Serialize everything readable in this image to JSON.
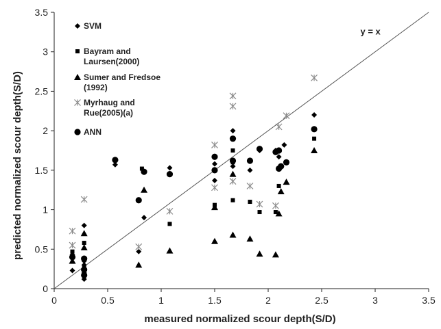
{
  "chart_data": {
    "type": "scatter",
    "xlabel": "measured normalized scour depth(S/D)",
    "ylabel": "predicted normalized scour depth(S/D)",
    "xlim": [
      0,
      3.5
    ],
    "ylim": [
      0,
      3.5
    ],
    "xticks": [
      "0",
      "0.5",
      "1",
      "1.5",
      "2",
      "2.5",
      "3",
      "3.5"
    ],
    "yticks": [
      "0",
      "0.5",
      "1",
      "1.5",
      "2",
      "2.5",
      "3",
      "3.5"
    ],
    "grid": false,
    "legend_position": "top-left inside plot",
    "reference_line": {
      "label": "y = x",
      "from": [
        0,
        0
      ],
      "to": [
        3.5,
        3.5
      ]
    },
    "series": [
      {
        "name": "SVM",
        "marker": "diamond",
        "color": "#000000",
        "legend_lines": [
          "SVM"
        ],
        "points": [
          [
            0.17,
            0.23
          ],
          [
            0.17,
            0.43
          ],
          [
            0.28,
            0.12
          ],
          [
            0.28,
            0.2
          ],
          [
            0.28,
            0.3
          ],
          [
            0.28,
            0.35
          ],
          [
            0.28,
            0.8
          ],
          [
            0.57,
            1.57
          ],
          [
            0.79,
            0.47
          ],
          [
            0.84,
            0.9
          ],
          [
            1.08,
            1.53
          ],
          [
            1.5,
            1.37
          ],
          [
            1.5,
            1.58
          ],
          [
            1.67,
            1.55
          ],
          [
            1.67,
            2.0
          ],
          [
            1.83,
            1.5
          ],
          [
            1.92,
            1.75
          ],
          [
            2.07,
            1.75
          ],
          [
            2.1,
            1.67
          ],
          [
            2.15,
            1.82
          ],
          [
            2.43,
            2.2
          ]
        ]
      },
      {
        "name": "Bayram and Laursen(2000)",
        "marker": "square",
        "color": "#000000",
        "legend_lines": [
          "Bayram and",
          "Laursen(2000)"
        ],
        "points": [
          [
            0.17,
            0.47
          ],
          [
            0.28,
            0.58
          ],
          [
            0.28,
            0.27
          ],
          [
            0.82,
            1.52
          ],
          [
            1.08,
            0.82
          ],
          [
            1.5,
            1.06
          ],
          [
            1.67,
            1.12
          ],
          [
            1.67,
            1.6
          ],
          [
            1.67,
            1.75
          ],
          [
            1.83,
            1.1
          ],
          [
            1.92,
            0.97
          ],
          [
            2.07,
            0.97
          ],
          [
            2.1,
            1.3
          ],
          [
            2.43,
            1.9
          ]
        ]
      },
      {
        "name": "Sumer and Fredsoe (1992)",
        "marker": "triangle",
        "color": "#000000",
        "legend_lines": [
          "Sumer and Fredsoe",
          "(1992)"
        ],
        "points": [
          [
            0.17,
            0.35
          ],
          [
            0.28,
            0.52
          ],
          [
            0.28,
            0.7
          ],
          [
            0.79,
            0.3
          ],
          [
            0.84,
            1.25
          ],
          [
            1.08,
            0.48
          ],
          [
            1.5,
            0.6
          ],
          [
            1.5,
            1.03
          ],
          [
            1.67,
            0.68
          ],
          [
            1.67,
            1.45
          ],
          [
            1.83,
            0.63
          ],
          [
            1.92,
            0.44
          ],
          [
            2.07,
            0.43
          ],
          [
            2.1,
            0.95
          ],
          [
            2.12,
            1.23
          ],
          [
            2.17,
            1.35
          ],
          [
            2.43,
            1.75
          ]
        ]
      },
      {
        "name": "Myrhaug and Rue(2005)(a)",
        "marker": "asterisk",
        "color": "#8a8a8a",
        "legend_lines": [
          "Myrhaug and",
          "Rue(2005)(a)"
        ],
        "points": [
          [
            0.17,
            0.73
          ],
          [
            0.17,
            0.55
          ],
          [
            0.28,
            1.13
          ],
          [
            0.79,
            0.53
          ],
          [
            1.08,
            0.98
          ],
          [
            1.5,
            1.82
          ],
          [
            1.5,
            1.28
          ],
          [
            1.67,
            2.44
          ],
          [
            1.67,
            2.31
          ],
          [
            1.67,
            1.36
          ],
          [
            1.83,
            1.3
          ],
          [
            1.92,
            1.07
          ],
          [
            2.07,
            1.05
          ],
          [
            2.1,
            2.05
          ],
          [
            2.17,
            2.19
          ],
          [
            2.43,
            2.67
          ]
        ]
      },
      {
        "name": "ANN",
        "marker": "circle",
        "color": "#000000",
        "legend_lines": [
          "ANN"
        ],
        "points": [
          [
            0.17,
            0.4
          ],
          [
            0.28,
            0.38
          ],
          [
            0.28,
            0.17
          ],
          [
            0.28,
            0.24
          ],
          [
            0.57,
            1.63
          ],
          [
            0.79,
            1.12
          ],
          [
            0.84,
            1.48
          ],
          [
            1.08,
            1.45
          ],
          [
            1.5,
            1.67
          ],
          [
            1.5,
            1.5
          ],
          [
            1.67,
            1.9
          ],
          [
            1.67,
            1.62
          ],
          [
            1.83,
            1.62
          ],
          [
            1.92,
            1.77
          ],
          [
            2.07,
            1.73
          ],
          [
            2.1,
            1.75
          ],
          [
            2.1,
            1.52
          ],
          [
            2.12,
            1.55
          ],
          [
            2.17,
            1.6
          ],
          [
            2.43,
            2.02
          ]
        ]
      }
    ]
  }
}
